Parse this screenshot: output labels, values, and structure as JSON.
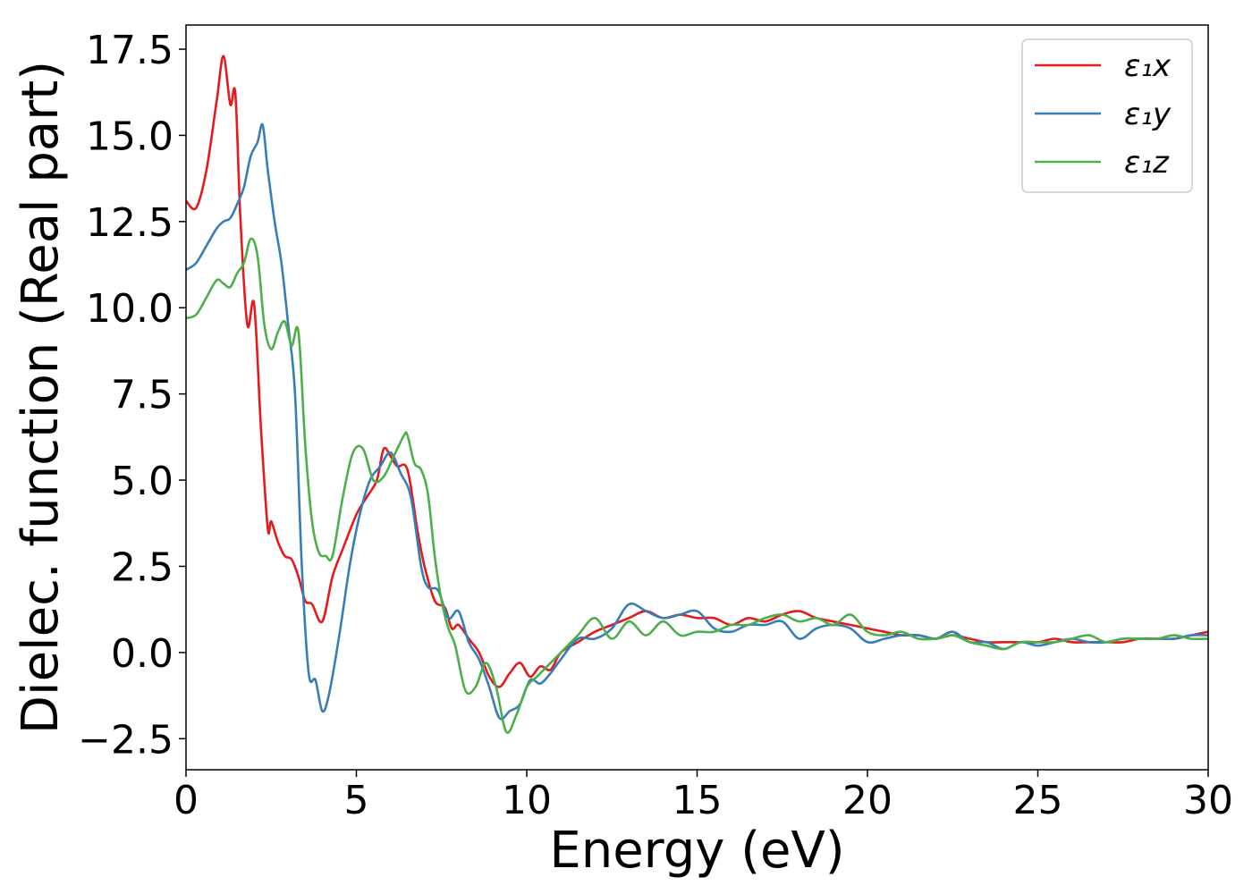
{
  "chart_data": {
    "type": "line",
    "title": "",
    "xlabel": "Energy (eV)",
    "ylabel": "Dielec. function (Real part)",
    "xlim": [
      0,
      30
    ],
    "ylim": [
      -3.4,
      18.2
    ],
    "xticks": [
      0,
      5,
      10,
      15,
      20,
      25,
      30
    ],
    "xtick_labels": [
      "0",
      "5",
      "10",
      "15",
      "20",
      "25",
      "30"
    ],
    "yticks": [
      -2.5,
      0,
      2.5,
      5,
      7.5,
      10,
      12.5,
      15,
      17.5
    ],
    "ytick_labels": [
      "−2.5",
      "0.0",
      "2.5",
      "5.0",
      "7.5",
      "10.0",
      "12.5",
      "15.0",
      "17.5"
    ],
    "grid": false,
    "legend_position": "top-right",
    "series": [
      {
        "name": "ε₁x",
        "color": "#e41a1c",
        "x": [
          0,
          0.3,
          0.6,
          0.9,
          1.1,
          1.3,
          1.45,
          1.6,
          1.8,
          2.0,
          2.2,
          2.4,
          2.5,
          2.7,
          2.9,
          3.1,
          3.3,
          3.5,
          3.7,
          4.0,
          4.3,
          4.6,
          5.0,
          5.3,
          5.6,
          5.8,
          6.0,
          6.2,
          6.5,
          6.8,
          7.0,
          7.3,
          7.6,
          7.8,
          8.0,
          8.3,
          8.6,
          8.9,
          9.2,
          9.5,
          9.8,
          10.1,
          10.4,
          10.7,
          11.0,
          11.5,
          12.0,
          12.5,
          13.0,
          13.5,
          14.0,
          14.5,
          15.0,
          15.5,
          16.0,
          16.5,
          17.0,
          17.5,
          18.0,
          18.5,
          19.0,
          19.5,
          20.0,
          20.5,
          21.0,
          21.5,
          22.0,
          22.5,
          23.0,
          23.5,
          24.0,
          24.5,
          25.0,
          25.5,
          26.0,
          26.5,
          27.0,
          27.5,
          28.0,
          28.5,
          29.0,
          29.5,
          30.0
        ],
        "y": [
          13.1,
          12.9,
          14.0,
          16.0,
          17.3,
          15.9,
          16.2,
          12.5,
          9.5,
          10.1,
          6.5,
          3.6,
          3.8,
          3.2,
          2.8,
          2.7,
          2.2,
          1.5,
          1.4,
          0.9,
          2.2,
          3.0,
          4.0,
          4.5,
          5.0,
          5.9,
          5.7,
          5.4,
          5.3,
          3.5,
          2.5,
          1.5,
          1.3,
          0.7,
          0.8,
          0.4,
          0.0,
          -0.7,
          -1.0,
          -0.6,
          -0.3,
          -0.7,
          -0.4,
          -0.5,
          0.0,
          0.3,
          0.6,
          0.8,
          1.0,
          1.2,
          1.0,
          1.1,
          1.0,
          1.0,
          0.8,
          1.0,
          0.9,
          1.1,
          1.2,
          1.0,
          0.9,
          0.8,
          0.7,
          0.6,
          0.5,
          0.5,
          0.4,
          0.5,
          0.4,
          0.3,
          0.3,
          0.3,
          0.3,
          0.4,
          0.3,
          0.3,
          0.3,
          0.3,
          0.4,
          0.4,
          0.4,
          0.5,
          0.6
        ]
      },
      {
        "name": "ε₁y",
        "color": "#377eb8",
        "x": [
          0,
          0.3,
          0.6,
          0.9,
          1.1,
          1.3,
          1.5,
          1.7,
          1.9,
          2.1,
          2.25,
          2.4,
          2.6,
          2.8,
          3.0,
          3.2,
          3.4,
          3.6,
          3.8,
          4.0,
          4.2,
          4.5,
          4.8,
          5.1,
          5.4,
          5.7,
          6.0,
          6.3,
          6.6,
          6.9,
          7.1,
          7.4,
          7.7,
          8.0,
          8.3,
          8.6,
          8.9,
          9.2,
          9.5,
          9.8,
          10.1,
          10.4,
          10.7,
          11.0,
          11.5,
          12.0,
          12.5,
          13.0,
          13.5,
          14.0,
          14.5,
          15.0,
          15.5,
          16.0,
          16.5,
          17.0,
          17.5,
          18.0,
          18.5,
          19.0,
          19.5,
          20.0,
          20.5,
          21.0,
          21.5,
          22.0,
          22.5,
          23.0,
          23.5,
          24.0,
          24.5,
          25.0,
          25.5,
          26.0,
          26.5,
          27.0,
          27.5,
          28.0,
          28.5,
          29.0,
          29.5,
          30.0
        ],
        "y": [
          11.1,
          11.3,
          11.8,
          12.3,
          12.5,
          12.6,
          13.0,
          13.5,
          14.4,
          14.8,
          15.3,
          14.0,
          12.5,
          11.3,
          9.5,
          7.5,
          2.5,
          -0.6,
          -0.8,
          -1.7,
          -1.2,
          0.5,
          2.5,
          4.0,
          5.0,
          5.4,
          5.8,
          5.2,
          4.5,
          2.5,
          1.9,
          1.8,
          1.0,
          1.2,
          0.3,
          -0.2,
          -1.0,
          -1.9,
          -1.7,
          -1.5,
          -0.8,
          -0.9,
          -0.6,
          -0.2,
          0.4,
          0.4,
          0.7,
          1.4,
          1.2,
          1.0,
          1.1,
          1.2,
          0.7,
          0.6,
          0.8,
          0.8,
          0.9,
          0.4,
          0.7,
          0.8,
          0.7,
          0.3,
          0.4,
          0.5,
          0.5,
          0.4,
          0.6,
          0.3,
          0.3,
          0.1,
          0.3,
          0.2,
          0.3,
          0.4,
          0.3,
          0.3,
          0.4,
          0.4,
          0.4,
          0.4,
          0.5,
          0.5
        ]
      },
      {
        "name": "ε₁z",
        "color": "#4daf4a",
        "x": [
          0,
          0.3,
          0.6,
          0.9,
          1.1,
          1.3,
          1.5,
          1.7,
          1.9,
          2.1,
          2.3,
          2.5,
          2.7,
          2.9,
          3.1,
          3.3,
          3.5,
          3.7,
          3.9,
          4.1,
          4.3,
          4.6,
          4.9,
          5.2,
          5.5,
          5.8,
          6.1,
          6.4,
          6.5,
          6.7,
          6.9,
          7.1,
          7.3,
          7.5,
          7.7,
          7.9,
          8.2,
          8.5,
          8.8,
          9.1,
          9.4,
          9.7,
          10.0,
          10.3,
          10.6,
          11.0,
          11.5,
          12.0,
          12.5,
          13.0,
          13.5,
          14.0,
          14.5,
          15.0,
          15.5,
          16.0,
          16.5,
          17.0,
          17.5,
          18.0,
          18.5,
          19.0,
          19.5,
          20.0,
          20.5,
          21.0,
          21.5,
          22.0,
          22.5,
          23.0,
          23.5,
          24.0,
          24.5,
          25.0,
          25.5,
          26.0,
          26.5,
          27.0,
          27.5,
          28.0,
          28.5,
          29.0,
          29.5,
          30.0
        ],
        "y": [
          9.7,
          9.8,
          10.3,
          10.8,
          10.7,
          10.6,
          11.0,
          11.3,
          12.0,
          11.5,
          9.5,
          8.8,
          9.3,
          9.6,
          8.9,
          9.3,
          6.0,
          3.8,
          2.9,
          2.8,
          2.8,
          4.5,
          5.8,
          5.9,
          5.0,
          5.1,
          5.7,
          6.3,
          6.3,
          5.5,
          5.3,
          4.6,
          2.8,
          1.5,
          0.7,
          0.2,
          -1.1,
          -1.0,
          -0.3,
          -1.0,
          -2.3,
          -1.8,
          -1.0,
          -0.7,
          -0.4,
          0.0,
          0.5,
          1.0,
          0.4,
          0.9,
          0.5,
          0.9,
          0.5,
          0.6,
          0.6,
          0.8,
          0.8,
          1.0,
          1.1,
          0.9,
          1.0,
          0.8,
          1.1,
          0.6,
          0.5,
          0.6,
          0.4,
          0.4,
          0.5,
          0.3,
          0.2,
          0.1,
          0.3,
          0.3,
          0.3,
          0.4,
          0.5,
          0.3,
          0.4,
          0.4,
          0.4,
          0.5,
          0.4,
          0.4
        ]
      }
    ]
  }
}
